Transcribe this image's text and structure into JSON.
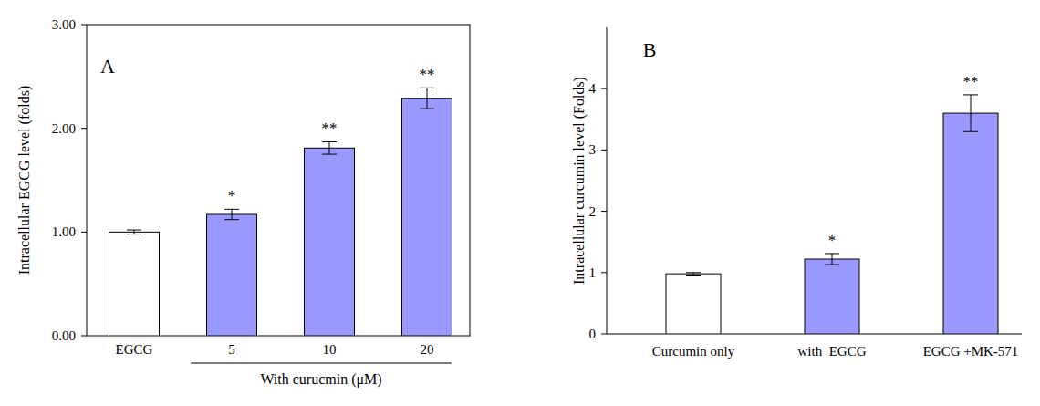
{
  "chart_data": [
    {
      "type": "bar",
      "title": "A",
      "y_label": "Intracellular EGCG level (folds)",
      "categories": [
        "EGCG",
        "5",
        "10",
        "20"
      ],
      "values": [
        1.0,
        1.17,
        1.81,
        2.29
      ],
      "errors": [
        0.02,
        0.05,
        0.06,
        0.1
      ],
      "significance": [
        null,
        "*",
        "**",
        "**"
      ],
      "group": {
        "label": "With curucmin (μM)",
        "from": "5",
        "to": "20"
      },
      "colors": [
        "#ffffff",
        "#9999ff",
        "#9999ff",
        "#9999ff"
      ],
      "ylim": [
        0,
        3
      ],
      "yticks": [
        {
          "value": 0,
          "label": "0.00"
        },
        {
          "value": 1,
          "label": "1.00"
        },
        {
          "value": 2,
          "label": "2.00"
        },
        {
          "value": 3,
          "label": "3.00"
        }
      ],
      "grid": false
    },
    {
      "type": "bar",
      "title": "B",
      "y_label": "Intracellular curcumin level (Folds)",
      "categories": [
        "Curcumin only",
        "with  EGCG",
        "EGCG +MK-571"
      ],
      "values": [
        0.98,
        1.22,
        3.6
      ],
      "errors": [
        0.02,
        0.09,
        0.3
      ],
      "significance": [
        null,
        "*",
        "**"
      ],
      "colors": [
        "#ffffff",
        "#9999ff",
        "#9999ff"
      ],
      "ylim": [
        0,
        5
      ],
      "yticks": [
        0,
        1,
        2,
        3,
        4
      ],
      "grid": false
    }
  ]
}
